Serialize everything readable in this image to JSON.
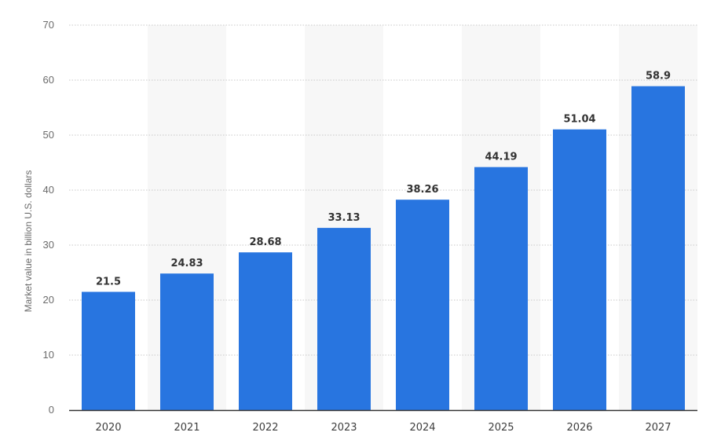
{
  "chart_data": {
    "type": "bar",
    "title": "",
    "xlabel": "",
    "ylabel": "Market value in billion U.S. dollars",
    "categories": [
      "2020",
      "2021",
      "2022",
      "2023",
      "2024",
      "2025",
      "2026",
      "2027"
    ],
    "values": [
      21.5,
      24.83,
      28.68,
      33.13,
      38.26,
      44.19,
      51.04,
      58.9
    ],
    "value_labels": [
      "21.5",
      "24.83",
      "28.68",
      "33.13",
      "38.26",
      "44.19",
      "51.04",
      "58.9"
    ],
    "ylim": [
      0,
      70
    ],
    "y_ticks": [
      0,
      10,
      20,
      30,
      40,
      50,
      60,
      70
    ],
    "grid": true,
    "grid_style": "dotted",
    "alternating_column_bands": true,
    "bar_color": "#2875e0",
    "band_color": "#f7f7f7",
    "grid_color": "#c8c8c8",
    "axis_color": "#333333"
  }
}
